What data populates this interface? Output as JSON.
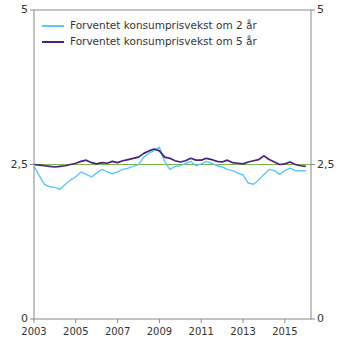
{
  "chart_data": {
    "type": "line",
    "x": [
      2003.0,
      2003.25,
      2003.5,
      2003.75,
      2004.0,
      2004.25,
      2004.5,
      2004.75,
      2005.0,
      2005.25,
      2005.5,
      2005.75,
      2006.0,
      2006.25,
      2006.5,
      2006.75,
      2007.0,
      2007.25,
      2007.5,
      2007.75,
      2008.0,
      2008.25,
      2008.5,
      2008.75,
      2009.0,
      2009.25,
      2009.5,
      2009.75,
      2010.0,
      2010.25,
      2010.5,
      2010.75,
      2011.0,
      2011.25,
      2011.5,
      2011.75,
      2012.0,
      2012.25,
      2012.5,
      2012.75,
      2013.0,
      2013.25,
      2013.5,
      2013.75,
      2014.0,
      2014.25,
      2014.5,
      2014.75,
      2015.0,
      2015.25,
      2015.5,
      2015.75,
      2016.0
    ],
    "series": [
      {
        "name": "Forventet konsumprisvekst om 2 år",
        "color": "#5bc8f5",
        "values": [
          2.47,
          2.32,
          2.18,
          2.14,
          2.13,
          2.1,
          2.18,
          2.25,
          2.3,
          2.38,
          2.34,
          2.3,
          2.36,
          2.42,
          2.38,
          2.35,
          2.38,
          2.42,
          2.44,
          2.47,
          2.5,
          2.62,
          2.68,
          2.73,
          2.78,
          2.55,
          2.42,
          2.47,
          2.48,
          2.52,
          2.55,
          2.48,
          2.51,
          2.55,
          2.52,
          2.48,
          2.46,
          2.42,
          2.4,
          2.36,
          2.33,
          2.2,
          2.18,
          2.25,
          2.34,
          2.42,
          2.4,
          2.34,
          2.4,
          2.44,
          2.4,
          2.4,
          2.4
        ]
      },
      {
        "name": "Forventet konsumprisvekst om 5 år",
        "color": "#4a2080",
        "values": [
          2.5,
          2.49,
          2.48,
          2.47,
          2.46,
          2.47,
          2.48,
          2.5,
          2.52,
          2.55,
          2.57,
          2.53,
          2.51,
          2.53,
          2.52,
          2.55,
          2.53,
          2.56,
          2.58,
          2.6,
          2.62,
          2.68,
          2.72,
          2.75,
          2.72,
          2.62,
          2.6,
          2.56,
          2.54,
          2.56,
          2.6,
          2.57,
          2.57,
          2.6,
          2.58,
          2.55,
          2.54,
          2.57,
          2.53,
          2.52,
          2.51,
          2.54,
          2.56,
          2.58,
          2.64,
          2.58,
          2.54,
          2.5,
          2.51,
          2.54,
          2.5,
          2.48,
          2.47
        ]
      }
    ],
    "hline": {
      "y": 2.5,
      "color": "#7ab648"
    },
    "xlim": [
      2003.0,
      2016.25
    ],
    "xticks": [
      2003,
      2005,
      2007,
      2009,
      2011,
      2013,
      2015
    ],
    "ylim": [
      0,
      5
    ],
    "yticks": [
      0,
      {
        "value": 2.5,
        "label": "2,5"
      },
      5
    ],
    "y2lim": [
      0,
      5
    ],
    "y2ticks": [
      0,
      {
        "value": 2.5,
        "label": "2,5"
      },
      5
    ],
    "legend": "upper left",
    "grid": false
  }
}
